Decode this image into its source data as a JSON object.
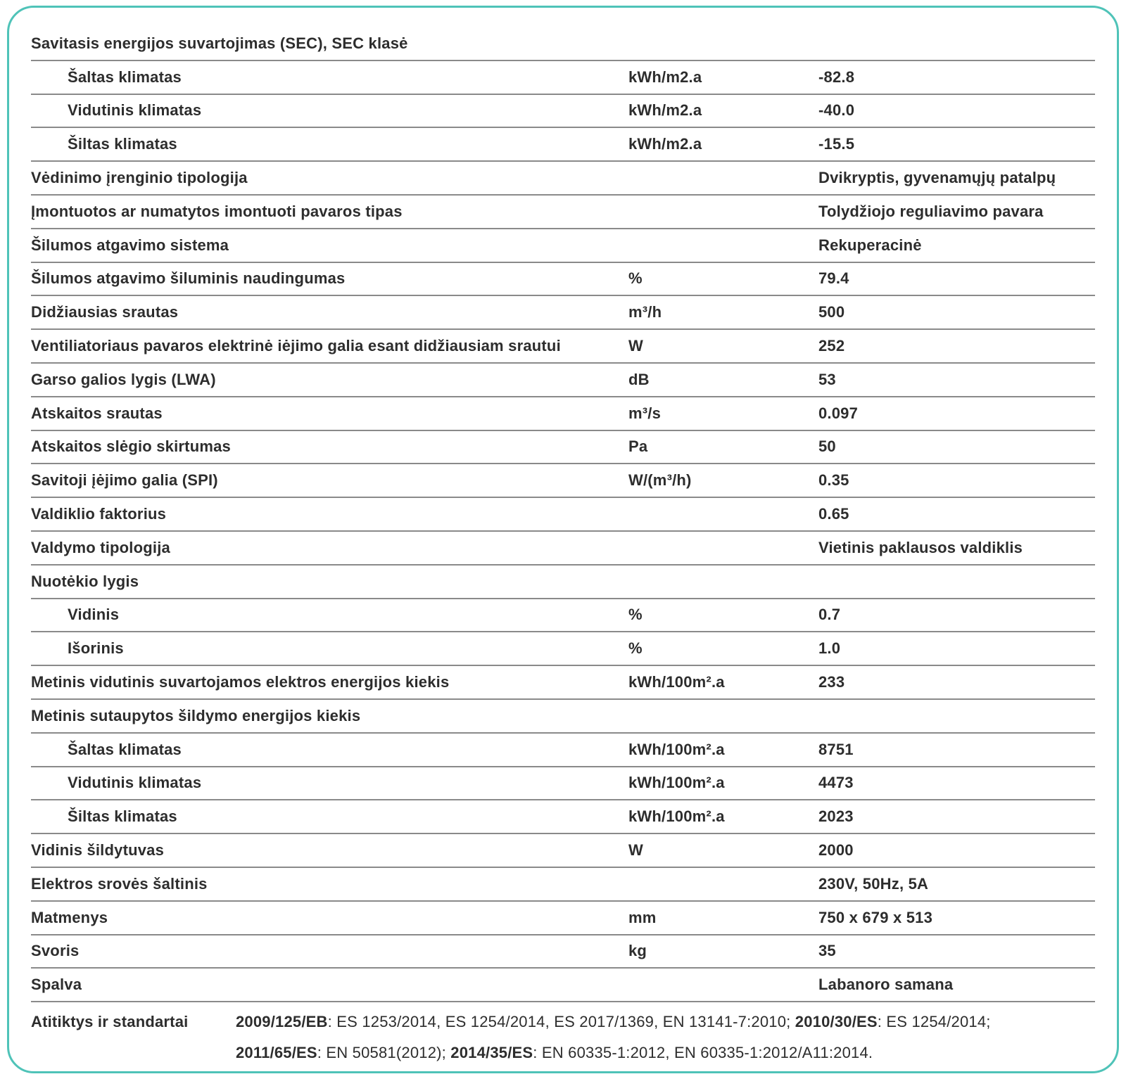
{
  "colors": {
    "accent": "#4fc3b8",
    "text": "#2d2d2d",
    "line": "#8a8a8a"
  },
  "table": {
    "rows": [
      {
        "label": "Savitasis energijos suvartojimas (SEC), SEC klasė",
        "unit": "",
        "value": "",
        "indent": false
      },
      {
        "label": "Šaltas klimatas",
        "unit": "kWh/m2.a",
        "value": "-82.8",
        "indent": true
      },
      {
        "label": "Vidutinis klimatas",
        "unit": "kWh/m2.a",
        "value": "-40.0",
        "indent": true
      },
      {
        "label": "Šiltas klimatas",
        "unit": "kWh/m2.a",
        "value": "-15.5",
        "indent": true
      },
      {
        "label": "Vėdinimo įrenginio tipologija",
        "unit": "",
        "value": "Dvikryptis, gyvenamųjų patalpų",
        "indent": false
      },
      {
        "label": "Įmontuotos ar numatytos imontuoti pavaros tipas",
        "unit": "",
        "value": "Tolydžiojo reguliavimo pavara",
        "indent": false
      },
      {
        "label": "Šilumos atgavimo sistema",
        "unit": "",
        "value": "Rekuperacinė",
        "indent": false
      },
      {
        "label": "Šilumos atgavimo šiluminis naudingumas",
        "unit": "%",
        "value": "79.4",
        "indent": false
      },
      {
        "label": "Didžiausias srautas",
        "unit": "m³/h",
        "value": "500",
        "indent": false
      },
      {
        "label": "Ventiliatoriaus pavaros elektrinė iėjimo galia esant didžiausiam srautui",
        "unit": "W",
        "value": "252",
        "indent": false
      },
      {
        "label": "Garso galios lygis (LWA)",
        "unit": "dB",
        "value": "53",
        "indent": false
      },
      {
        "label": "Atskaitos srautas",
        "unit": "m³/s",
        "value": "0.097",
        "indent": false
      },
      {
        "label": "Atskaitos slėgio skirtumas",
        "unit": "Pa",
        "value": "50",
        "indent": false
      },
      {
        "label": "Savitoji įėjimo galia (SPI)",
        "unit": "W/(m³/h)",
        "value": "0.35",
        "indent": false
      },
      {
        "label": "Valdiklio faktorius",
        "unit": "",
        "value": "0.65",
        "indent": false
      },
      {
        "label": "Valdymo tipologija",
        "unit": "",
        "value": "Vietinis paklausos valdiklis",
        "indent": false
      },
      {
        "label": "Nuotėkio lygis",
        "unit": "",
        "value": "",
        "indent": false
      },
      {
        "label": "Vidinis",
        "unit": "%",
        "value": "0.7",
        "indent": true
      },
      {
        "label": "Išorinis",
        "unit": "%",
        "value": "1.0",
        "indent": true
      },
      {
        "label": "Metinis vidutinis suvartojamos elektros energijos kiekis",
        "unit": "kWh/100m².a",
        "value": "233",
        "indent": false
      },
      {
        "label": "Metinis sutaupytos šildymo energijos kiekis",
        "unit": "",
        "value": "",
        "indent": false
      },
      {
        "label": "Šaltas klimatas",
        "unit": "kWh/100m².a",
        "value": "8751",
        "indent": true
      },
      {
        "label": "Vidutinis klimatas",
        "unit": "kWh/100m².a",
        "value": "4473",
        "indent": true
      },
      {
        "label": "Šiltas klimatas",
        "unit": "kWh/100m².a",
        "value": "2023",
        "indent": true
      },
      {
        "label": "Vidinis šildytuvas",
        "unit": "W",
        "value": "2000",
        "indent": false
      },
      {
        "label": "Elektros srovės šaltinis",
        "unit": "",
        "value": "230V, 50Hz, 5A",
        "indent": false
      },
      {
        "label": "Matmenys",
        "unit": "mm",
        "value": "750 x 679 x 513",
        "indent": false
      },
      {
        "label": "Svoris",
        "unit": "kg",
        "value": "35",
        "indent": false
      },
      {
        "label": "Spalva",
        "unit": "",
        "value": "Labanoro samana",
        "indent": false
      }
    ]
  },
  "compliance": {
    "label": "Atitiktys ir standartai",
    "segments": [
      {
        "text": "2009/125/EB",
        "bold": true
      },
      {
        "text": ": ES 1253/2014, ES 1254/2014, ES 2017/1369, EN 13141-7:2010; ",
        "bold": false
      },
      {
        "text": "2010/30/ES",
        "bold": true
      },
      {
        "text": ": ES 1254/2014;",
        "bold": false,
        "newline_after": true
      },
      {
        "text": "2011/65/ES",
        "bold": true
      },
      {
        "text": ": EN 50581(2012); ",
        "bold": false
      },
      {
        "text": "2014/35/ES",
        "bold": true
      },
      {
        "text": ": EN 60335-1:2012, EN 60335-1:2012/A11:2014.",
        "bold": false
      }
    ]
  }
}
